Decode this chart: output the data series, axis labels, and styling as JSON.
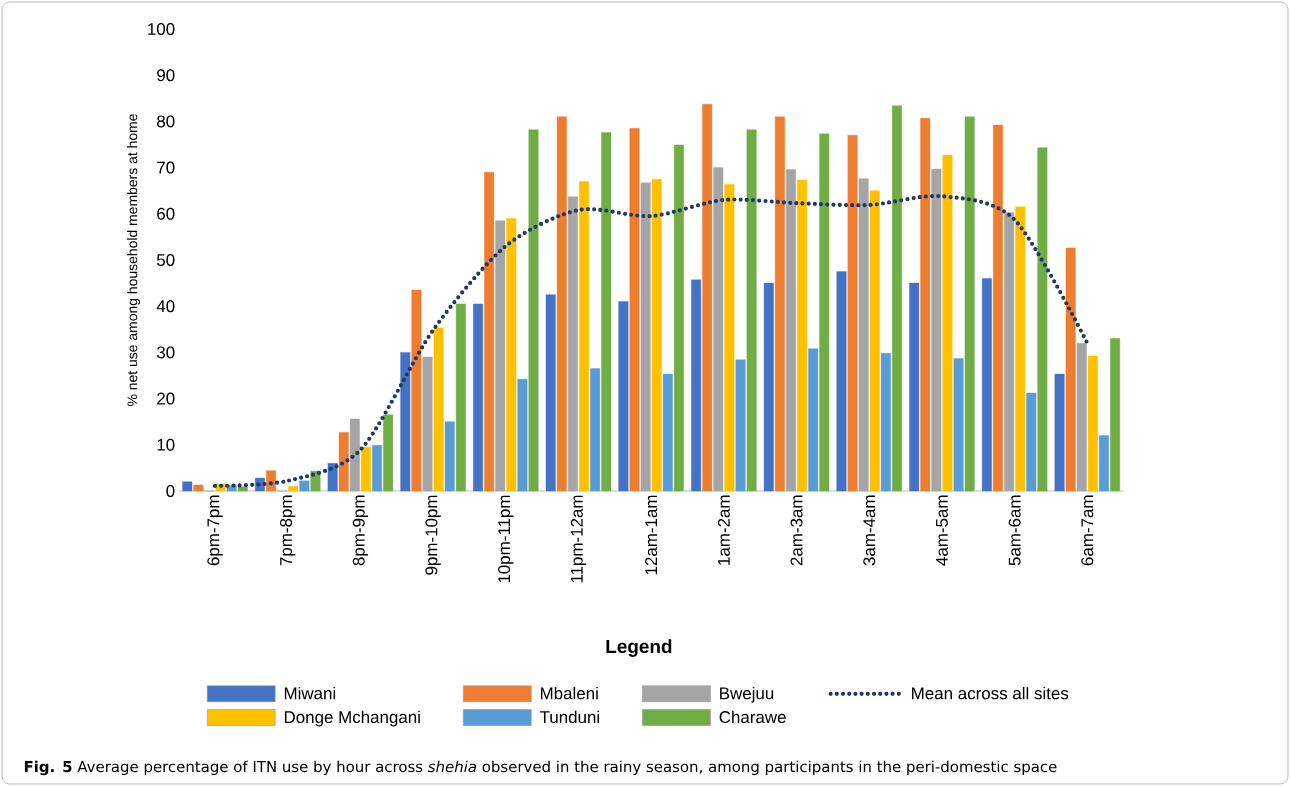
{
  "chart_data": {
    "type": "bar",
    "ylabel": "% net use among household members at home",
    "legend_title": "Legend",
    "annotations": [
      "**Fig. 5** Average percentage of ITN use by hour across *shehia* observed in the rainy season, among participants in the peri-domestic space"
    ],
    "categories": [
      "6pm-7pm",
      "7pm-8pm",
      "8pm-9pm",
      "9pm-10pm",
      "10pm-11pm",
      "11pm-12am",
      "12am-1am",
      "1am-2am",
      "2am-3am",
      "3am-4am",
      "4am-5am",
      "5am-6am",
      "6am-7am"
    ],
    "series": [
      {
        "name": "Miwani",
        "color": "#4472c4",
        "values": [
          2,
          2.8,
          6,
          30,
          40.5,
          42.5,
          41,
          45.7,
          45,
          47.5,
          45,
          46,
          25.3
        ]
      },
      {
        "name": "Mbaleni",
        "color": "#ed7d31",
        "values": [
          1.3,
          4.4,
          12.7,
          43.5,
          69,
          81,
          78.5,
          83.7,
          81,
          77,
          80.7,
          79.2,
          52.6
        ]
      },
      {
        "name": "Bwejuu",
        "color": "#a5a5a5",
        "values": [
          0,
          0,
          15.6,
          29,
          58.5,
          63.7,
          66.7,
          70,
          69.6,
          67.6,
          69.7,
          60.3,
          32
        ]
      },
      {
        "name": "Donge Mchangani",
        "color": "#ffc000",
        "values": [
          1.5,
          1,
          9.5,
          35.3,
          59,
          67,
          67.5,
          66.4,
          67.3,
          65,
          72.7,
          61.5,
          29.2
        ]
      },
      {
        "name": "Tunduni",
        "color": "#5b9bd5",
        "values": [
          1.2,
          2.2,
          9.9,
          15,
          24.2,
          26.5,
          25.3,
          28.4,
          30.8,
          29.8,
          28.7,
          21.2,
          12
        ]
      },
      {
        "name": "Charawe",
        "color": "#70ad47",
        "values": [
          0.9,
          4.3,
          16.5,
          40.5,
          78.2,
          77.6,
          74.9,
          78.2,
          77.3,
          83.4,
          81,
          74.3,
          33
        ]
      },
      {
        "name": "Mean across all sites",
        "color": "#203864",
        "type": "line",
        "line_style": "dotted",
        "marker": "none",
        "values": [
          1.1,
          2.2,
          8.9,
          34.8,
          53,
          60.8,
          59.5,
          63,
          62.3,
          61.9,
          63.8,
          58.7,
          32
        ]
      }
    ],
    "ylim": [
      0,
      100
    ],
    "yticks": [
      0,
      10,
      20,
      30,
      40,
      50,
      60,
      70,
      80,
      90,
      100
    ],
    "grid": false,
    "legend": "bottom"
  }
}
